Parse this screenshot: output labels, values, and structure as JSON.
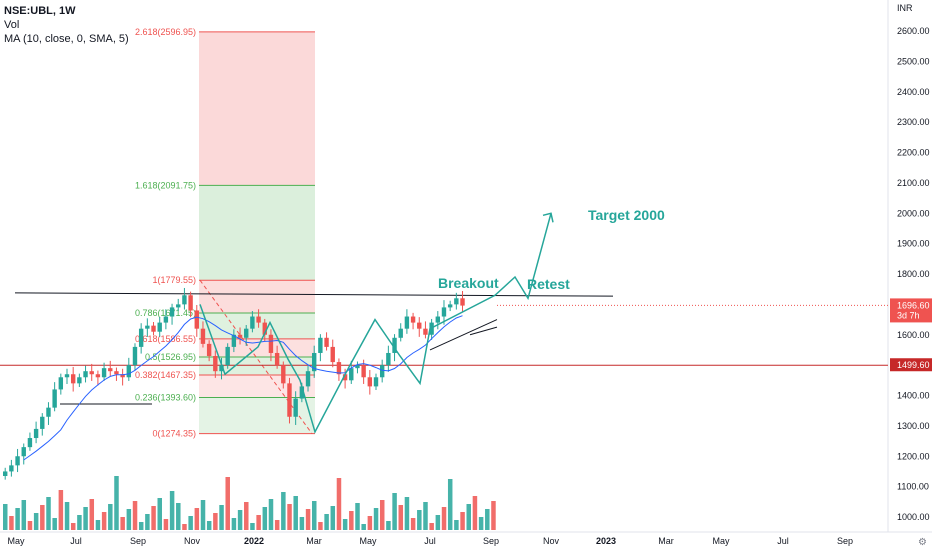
{
  "header": {
    "symbol_line": "NSE:UBL, 1W",
    "vol_label": "Vol",
    "ma_label": "MA (10, close, 0, SMA, 5)"
  },
  "chart_data": {
    "type": "candlestick",
    "symbol": "NSE:UBL",
    "interval": "1W",
    "currency": "INR",
    "y_axis": {
      "ylim": [
        950,
        2660
      ],
      "ticks": [
        1000,
        1100,
        1200,
        1300,
        1400,
        1500,
        1600,
        1700,
        1800,
        1900,
        2000,
        2100,
        2200,
        2300,
        2400,
        2500,
        2600
      ],
      "tick_labels": [
        "1000.00",
        "1100.00",
        "1200.00",
        "1300.00",
        "1400.00",
        "1500.00",
        "1600.00",
        "1700.00",
        "1800.00",
        "1900.00",
        "2000.00",
        "2100.00",
        "2200.00",
        "2300.00",
        "2400.00",
        "2500.00",
        "2600.00"
      ]
    },
    "x_axis": {
      "labels": [
        "May",
        "Jul",
        "Sep",
        "Nov",
        "2022",
        "Mar",
        "May",
        "Jul",
        "Sep",
        "Nov",
        "2023",
        "Mar",
        "May",
        "Jul",
        "Sep"
      ],
      "bold": [
        "2022",
        "2023"
      ]
    },
    "price_badges": [
      {
        "value": "1696.60",
        "sub": "3d 7h",
        "color": "#ef5350"
      },
      {
        "value": "1499.60",
        "color": "#c62828"
      }
    ],
    "horizontal_line": {
      "price": 1499.6,
      "color": "#c62828"
    },
    "fib_levels": [
      {
        "label": "2.618(2596.95)",
        "price": 2596.95,
        "color": "#ef5350"
      },
      {
        "label": "1.618(2091.75)",
        "price": 2091.75,
        "color": "#4caf50"
      },
      {
        "label": "1(1779.55)",
        "price": 1779.55,
        "color": "#ef5350"
      },
      {
        "label": "0.786(1671.45)",
        "price": 1671.45,
        "color": "#4caf50"
      },
      {
        "label": "0.618(1586.55)",
        "price": 1586.55,
        "color": "#ef5350"
      },
      {
        "label": "0.5(1526.95)",
        "price": 1526.95,
        "color": "#4caf50"
      },
      {
        "label": "0.382(1467.35)",
        "price": 1467.35,
        "color": "#ef5350"
      },
      {
        "label": "0.236(1393.60)",
        "price": 1393.6,
        "color": "#4caf50"
      },
      {
        "label": "0(1274.35)",
        "price": 1274.35,
        "color": "#ef5350"
      }
    ],
    "annotations": [
      {
        "text": "Breakout",
        "color": "#26a69a"
      },
      {
        "text": "Retest",
        "color": "#26a69a"
      },
      {
        "text": "Target 2000",
        "color": "#26a69a"
      }
    ],
    "colors": {
      "up": "#26a69a",
      "down": "#ef5350",
      "ma": "#2962ff",
      "pattern": "#26a69a"
    }
  }
}
